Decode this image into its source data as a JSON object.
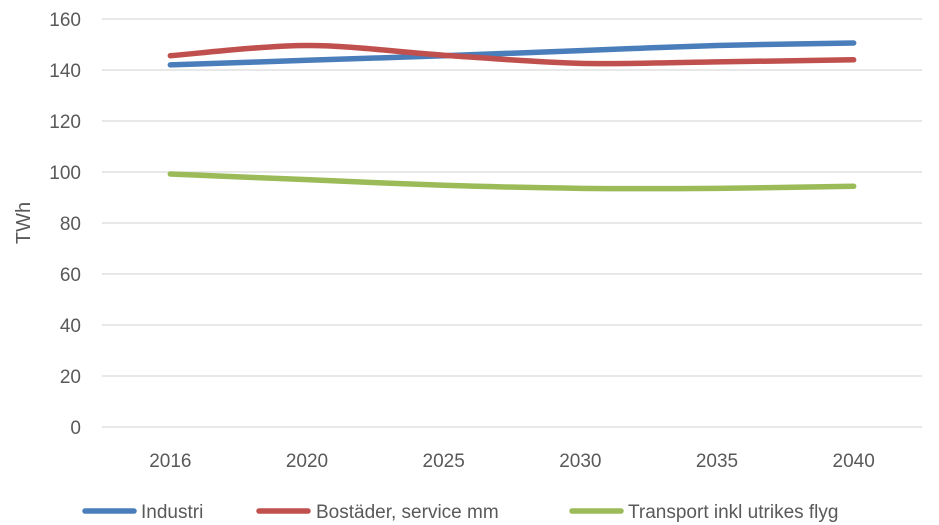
{
  "chart_data": {
    "type": "line",
    "title": "",
    "xlabel": "",
    "ylabel": "TWh",
    "ylim": [
      0,
      160
    ],
    "ytick_step": 20,
    "grid": true,
    "legend_position": "bottom",
    "categories": [
      "2016",
      "2020",
      "2025",
      "2030",
      "2035",
      "2040"
    ],
    "series": [
      {
        "name": "Industri",
        "color": "#4a7ebb",
        "values": [
          142,
          143.8,
          145.6,
          147.6,
          149.6,
          150.6
        ]
      },
      {
        "name": "Bostäder, service mm",
        "color": "#c0504d",
        "values": [
          145.6,
          149.6,
          145.8,
          142.6,
          143.2,
          144
        ]
      },
      {
        "name": "Transport inkl utrikes flyg",
        "color": "#9bbb59",
        "values": [
          99.2,
          97,
          94.8,
          93.6,
          93.6,
          94.4
        ]
      }
    ]
  }
}
